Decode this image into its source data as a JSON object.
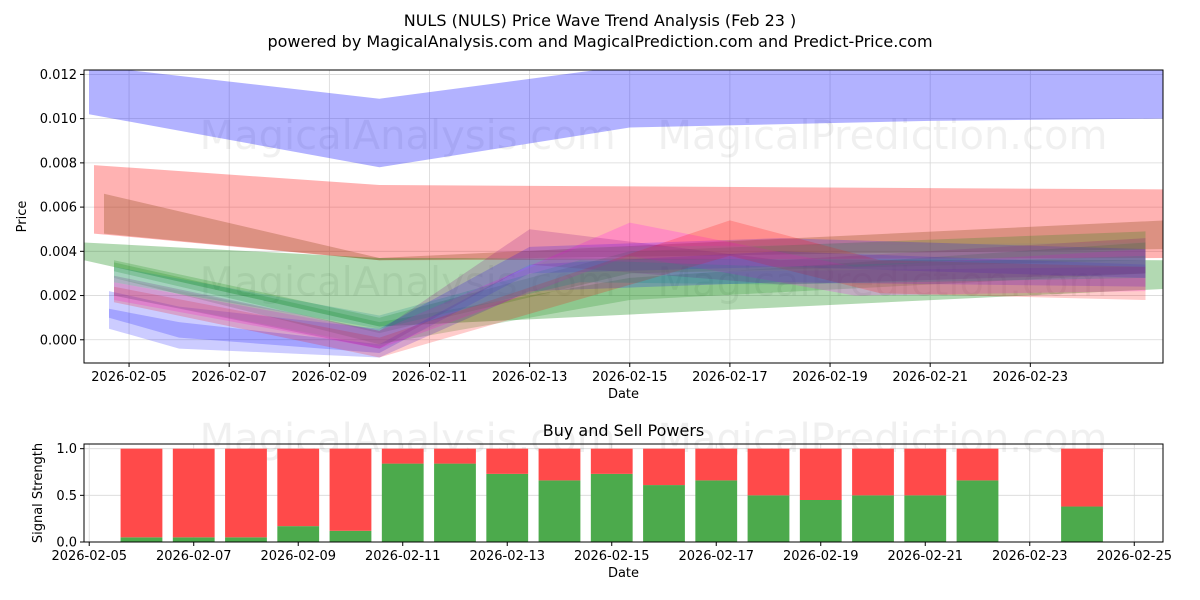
{
  "title_line1": "NULS (NULS) Price Wave Trend Analysis (Feb 23 )",
  "title_line2": "powered by MagicalAnalysis.com and MagicalPrediction.com and Predict-Price.com",
  "watermarks": [
    "MagicalAnalysis.com",
    "MagicalPrediction.com"
  ],
  "chart_data": [
    {
      "type": "area",
      "title": "",
      "xlabel": "Date",
      "ylabel": "Price",
      "xlim": [
        4.1,
        25.65
      ],
      "ylim": [
        -0.00105,
        0.0122
      ],
      "x_ticks": [
        5,
        7,
        9,
        11,
        13,
        15,
        17,
        19,
        21,
        23
      ],
      "x_tick_labels": [
        "2026-02-05",
        "2026-02-07",
        "2026-02-09",
        "2026-02-11",
        "2026-02-13",
        "2026-02-15",
        "2026-02-17",
        "2026-02-19",
        "2026-02-21",
        "2026-02-23"
      ],
      "y_ticks": [
        0.0,
        0.002,
        0.004,
        0.006,
        0.008,
        0.01,
        0.012
      ],
      "y_tick_labels": [
        "0.000",
        "0.002",
        "0.004",
        "0.006",
        "0.008",
        "0.010",
        "0.012"
      ],
      "grid": true,
      "x_unit": "day of February 2026",
      "bands": [
        {
          "name": "blue-top",
          "color": "#0000ff",
          "opacity": 0.3,
          "x": [
            4.2,
            10.0,
            15.0,
            21.0,
            25.7
          ],
          "upper": [
            0.0124,
            0.0109,
            0.0124,
            0.0124,
            0.0124
          ],
          "lower": [
            0.0102,
            0.0078,
            0.0096,
            0.0099,
            0.01
          ]
        },
        {
          "name": "red-main",
          "color": "#ff0000",
          "opacity": 0.3,
          "x": [
            4.3,
            10.0,
            25.7
          ],
          "upper": [
            0.0079,
            0.007,
            0.0068
          ],
          "lower": [
            0.0048,
            0.0036,
            0.0037
          ]
        },
        {
          "name": "brown",
          "color": "#8b4513",
          "opacity": 0.3,
          "x": [
            4.5,
            10.0,
            25.7
          ],
          "upper": [
            0.0066,
            0.0037,
            0.0054
          ],
          "lower": [
            0.0048,
            0.0036,
            0.0041
          ]
        },
        {
          "name": "green-main",
          "color": "#008000",
          "opacity": 0.3,
          "x": [
            4.1,
            10.0,
            25.7
          ],
          "upper": [
            0.0044,
            0.0037,
            0.0036
          ],
          "lower": [
            0.0036,
            0.0006,
            0.0023
          ]
        },
        {
          "name": "green-a",
          "color": "#008000",
          "opacity": 0.2,
          "x": [
            4.7,
            10.0,
            15.0,
            25.3
          ],
          "upper": [
            0.0036,
            0.001,
            0.004,
            0.0049
          ],
          "lower": [
            0.0031,
            0.0003,
            0.003,
            0.0036
          ]
        },
        {
          "name": "green-b",
          "color": "#008000",
          "opacity": 0.2,
          "x": [
            4.7,
            10.0,
            15.0,
            25.3
          ],
          "upper": [
            0.0035,
            0.0008,
            0.0028,
            0.0044
          ],
          "lower": [
            0.0028,
            -0.0002,
            0.0018,
            0.003
          ]
        },
        {
          "name": "blue-a",
          "color": "#0000ff",
          "opacity": 0.2,
          "x": [
            4.6,
            6.0,
            10.0,
            13.0,
            18.0,
            25.3
          ],
          "upper": [
            0.0022,
            0.0015,
            0.0005,
            0.0042,
            0.0046,
            0.0041
          ],
          "lower": [
            0.001,
            0.0001,
            -0.0006,
            0.003,
            0.0033,
            0.0028
          ]
        },
        {
          "name": "blue-b",
          "color": "#0000ff",
          "opacity": 0.2,
          "x": [
            4.6,
            6.0,
            10.0,
            13.0,
            18.0,
            25.3
          ],
          "upper": [
            0.0014,
            0.0008,
            -0.0002,
            0.0034,
            0.004,
            0.0034
          ],
          "lower": [
            0.0005,
            -0.0004,
            -0.0008,
            0.0022,
            0.0026,
            0.0024
          ]
        },
        {
          "name": "magenta",
          "color": "#ff00ff",
          "opacity": 0.2,
          "x": [
            4.7,
            10.0,
            15.0,
            19.5,
            25.3
          ],
          "upper": [
            0.0026,
            0.0004,
            0.0053,
            0.0033,
            0.0041
          ],
          "lower": [
            0.0018,
            -0.0004,
            0.0038,
            0.002,
            0.0022
          ]
        },
        {
          "name": "red-a",
          "color": "#ff0000",
          "opacity": 0.2,
          "x": [
            4.7,
            10.0,
            17.0,
            20.0,
            25.3
          ],
          "upper": [
            0.0024,
            0.0001,
            0.0054,
            0.0036,
            0.0033
          ],
          "lower": [
            0.0017,
            -0.0008,
            0.0038,
            0.0021,
            0.0018
          ]
        },
        {
          "name": "purple",
          "color": "#800080",
          "opacity": 0.2,
          "x": [
            4.7,
            10.0,
            13.0,
            18.0,
            25.3
          ],
          "upper": [
            0.0029,
            0.0004,
            0.005,
            0.0036,
            0.0046
          ],
          "lower": [
            0.002,
            -0.0004,
            0.0034,
            0.0025,
            0.003
          ]
        },
        {
          "name": "teal",
          "color": "#008080",
          "opacity": 0.2,
          "x": [
            4.7,
            10.0,
            14.0,
            18.0,
            25.3
          ],
          "upper": [
            0.0033,
            0.0011,
            0.0036,
            0.0033,
            0.0038
          ],
          "lower": [
            0.0026,
            0.0005,
            0.0026,
            0.0025,
            0.0028
          ]
        },
        {
          "name": "gray",
          "color": "#808080",
          "opacity": 0.2,
          "x": [
            4.7,
            10.0,
            14.0,
            25.3
          ],
          "upper": [
            0.0028,
            0.0004,
            0.0042,
            0.0044
          ],
          "lower": [
            0.002,
            -0.0003,
            0.003,
            0.0033
          ]
        }
      ]
    },
    {
      "type": "bar",
      "title": "Buy and Sell Powers",
      "xlabel": "Date",
      "ylabel": "Signal Strength",
      "xlim": [
        4.9,
        25.55
      ],
      "ylim": [
        0,
        1.05
      ],
      "x_ticks": [
        5,
        7,
        9,
        11,
        13,
        15,
        17,
        19,
        21,
        23,
        25
      ],
      "x_tick_labels": [
        "2026-02-05",
        "2026-02-07",
        "2026-02-09",
        "2026-02-11",
        "2026-02-13",
        "2026-02-15",
        "2026-02-17",
        "2026-02-19",
        "2026-02-21",
        "2026-02-23",
        "2026-02-25"
      ],
      "y_ticks": [
        0.0,
        0.5,
        1.0
      ],
      "y_tick_labels": [
        "0.0",
        "0.5",
        "1.0"
      ],
      "grid": true,
      "bar_width_days": 0.8,
      "buy_color": "#4caa4c",
      "sell_color": "#ff4a4a",
      "categories": [
        6,
        7,
        8,
        9,
        10,
        11,
        12,
        13,
        14,
        15,
        16,
        17,
        18,
        19,
        20,
        21,
        22,
        24
      ],
      "series": [
        {
          "name": "Buy",
          "values": [
            0.05,
            0.05,
            0.05,
            0.17,
            0.12,
            0.84,
            0.84,
            0.73,
            0.66,
            0.73,
            0.61,
            0.66,
            0.5,
            0.45,
            0.5,
            0.5,
            0.66,
            0.38
          ]
        },
        {
          "name": "Sell",
          "values": [
            0.95,
            0.95,
            0.95,
            0.83,
            0.88,
            0.16,
            0.16,
            0.27,
            0.34,
            0.27,
            0.39,
            0.34,
            0.5,
            0.55,
            0.5,
            0.5,
            0.34,
            0.62
          ]
        }
      ]
    }
  ]
}
